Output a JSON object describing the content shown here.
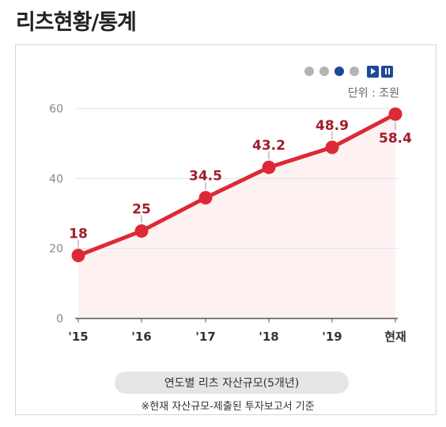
{
  "header": {
    "title": "리츠현황/통계"
  },
  "controls": {
    "pages": [
      {
        "active": false
      },
      {
        "active": false
      },
      {
        "active": true
      },
      {
        "active": false
      }
    ],
    "play_icon": "play-icon",
    "pause_icon": "pause-icon"
  },
  "chart_data": {
    "type": "line",
    "title": "",
    "unit": "단위 : 조원",
    "categories": [
      "'15",
      "'16",
      "'17",
      "'18",
      "'19",
      "현재"
    ],
    "values": [
      18,
      25,
      34.5,
      43.2,
      48.9,
      58.4
    ],
    "value_labels": [
      "18",
      "25",
      "34.5",
      "43.2",
      "48.9",
      "58.4"
    ],
    "ylim": [
      0,
      60
    ],
    "yticks": [
      0,
      20,
      40,
      60
    ],
    "grid": true,
    "legend": "none",
    "colors": {
      "line": "#dc2a36",
      "area": "#fdf1f2",
      "label": "#a11d2a",
      "grid": "#d7e6ec",
      "axis": "#555555"
    }
  },
  "footer": {
    "caption": "연도별 리츠 자산규모(5개년)",
    "note": "※현재 자산규모-제출된 투자보고서 기준"
  }
}
